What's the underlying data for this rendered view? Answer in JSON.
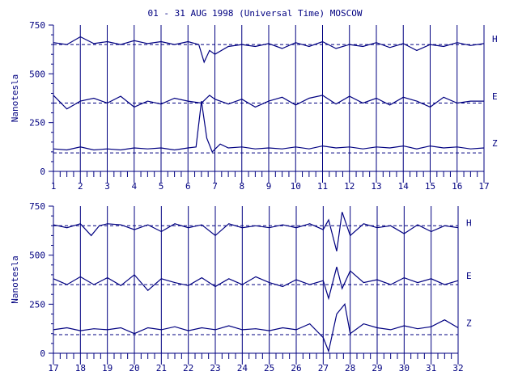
{
  "chart_data": {
    "type": "line",
    "title": "01 - 31 AUG 1998 (Universal Time) MOSCOW",
    "ylabel": "Nanotesla",
    "ylim": [
      0,
      750
    ],
    "yticks": [
      0,
      250,
      500,
      750
    ],
    "grid": "vertical day lines",
    "colors": {
      "axis": "#000080",
      "trace": "#000080"
    },
    "panels": [
      {
        "xlim": [
          1,
          17
        ],
        "xticks": [
          "1",
          "2",
          "3",
          "4",
          "5",
          "6",
          "7",
          "8",
          "9",
          "10",
          "11",
          "12",
          "13",
          "14",
          "15",
          "16",
          "17"
        ],
        "series": [
          {
            "name": "H",
            "baseline": 650,
            "x": [
              1,
              1.5,
              2,
              2.5,
              3,
              3.5,
              4,
              4.5,
              5,
              5.5,
              6,
              6.4,
              6.6,
              6.8,
              7,
              7.5,
              8,
              8.5,
              9,
              9.5,
              10,
              10.5,
              11,
              11.5,
              12,
              12.5,
              13,
              13.5,
              14,
              14.5,
              15,
              15.5,
              16,
              16.5,
              17
            ],
            "y": [
              660,
              650,
              690,
              655,
              665,
              650,
              670,
              655,
              665,
              650,
              665,
              650,
              560,
              620,
              600,
              640,
              650,
              640,
              655,
              630,
              660,
              640,
              665,
              630,
              650,
              640,
              660,
              635,
              655,
              620,
              650,
              640,
              660,
              645,
              655
            ]
          },
          {
            "name": "E",
            "baseline": 350,
            "x": [
              1,
              1.5,
              2,
              2.5,
              3,
              3.5,
              4,
              4.5,
              5,
              5.5,
              6,
              6.5,
              6.8,
              7,
              7.5,
              8,
              8.5,
              9,
              9.5,
              10,
              10.5,
              11,
              11.5,
              12,
              12.5,
              13,
              13.5,
              14,
              14.5,
              15,
              15.5,
              16,
              16.5,
              17
            ],
            "y": [
              390,
              320,
              360,
              375,
              350,
              385,
              330,
              360,
              345,
              375,
              360,
              350,
              390,
              370,
              345,
              370,
              330,
              360,
              380,
              340,
              375,
              390,
              345,
              385,
              350,
              375,
              340,
              380,
              360,
              330,
              380,
              350,
              360,
              360
            ]
          },
          {
            "name": "Z",
            "baseline": 95,
            "x": [
              1,
              1.5,
              2,
              2.5,
              3,
              3.5,
              4,
              4.5,
              5,
              5.5,
              6,
              6.3,
              6.5,
              6.7,
              6.9,
              7.2,
              7.5,
              8,
              8.5,
              9,
              9.5,
              10,
              10.5,
              11,
              11.5,
              12,
              12.5,
              13,
              13.5,
              14,
              14.5,
              15,
              15.5,
              16,
              16.5,
              17
            ],
            "y": [
              115,
              110,
              125,
              110,
              115,
              110,
              120,
              115,
              120,
              110,
              120,
              125,
              360,
              170,
              100,
              140,
              120,
              125,
              115,
              120,
              115,
              125,
              115,
              130,
              120,
              125,
              115,
              125,
              120,
              130,
              115,
              130,
              120,
              125,
              115,
              120
            ]
          }
        ]
      },
      {
        "xlim": [
          17,
          32
        ],
        "xticks": [
          "17",
          "18",
          "19",
          "20",
          "21",
          "22",
          "23",
          "24",
          "25",
          "26",
          "27",
          "28",
          "29",
          "30",
          "31",
          "32"
        ],
        "series": [
          {
            "name": "H",
            "baseline": 650,
            "x": [
              17,
              17.5,
              18,
              18.4,
              18.7,
              19,
              19.5,
              20,
              20.5,
              21,
              21.5,
              22,
              22.5,
              23,
              23.5,
              24,
              24.5,
              25,
              25.5,
              26,
              26.5,
              27,
              27.2,
              27.5,
              27.7,
              28,
              28.5,
              29,
              29.5,
              30,
              30.5,
              31,
              31.5,
              32
            ],
            "y": [
              655,
              640,
              660,
              600,
              650,
              660,
              655,
              630,
              655,
              620,
              660,
              640,
              655,
              600,
              660,
              640,
              650,
              640,
              655,
              640,
              660,
              630,
              680,
              520,
              720,
              600,
              660,
              640,
              650,
              610,
              655,
              620,
              650,
              640
            ]
          },
          {
            "name": "E",
            "baseline": 350,
            "x": [
              17,
              17.5,
              18,
              18.5,
              19,
              19.5,
              20,
              20.5,
              21,
              21.5,
              22,
              22.5,
              23,
              23.5,
              24,
              24.5,
              25,
              25.5,
              26,
              26.5,
              27,
              27.2,
              27.5,
              27.7,
              28,
              28.5,
              29,
              29.5,
              30,
              30.5,
              31,
              31.5,
              32
            ],
            "y": [
              380,
              350,
              390,
              350,
              385,
              345,
              400,
              320,
              380,
              360,
              345,
              385,
              340,
              380,
              350,
              390,
              360,
              340,
              375,
              350,
              370,
              280,
              440,
              330,
              420,
              360,
              375,
              350,
              385,
              360,
              380,
              350,
              370
            ]
          },
          {
            "name": "Z",
            "baseline": 95,
            "x": [
              17,
              17.5,
              18,
              18.5,
              19,
              19.5,
              20,
              20.5,
              21,
              21.5,
              22,
              22.5,
              23,
              23.5,
              24,
              24.5,
              25,
              25.5,
              26,
              26.5,
              27,
              27.2,
              27.5,
              27.8,
              28,
              28.5,
              29,
              29.5,
              30,
              30.5,
              31,
              31.5,
              32
            ],
            "y": [
              120,
              130,
              115,
              125,
              120,
              130,
              100,
              130,
              120,
              135,
              115,
              130,
              120,
              140,
              120,
              125,
              115,
              130,
              120,
              150,
              80,
              10,
              200,
              250,
              100,
              150,
              130,
              120,
              140,
              125,
              135,
              170,
              130
            ]
          }
        ]
      }
    ]
  }
}
